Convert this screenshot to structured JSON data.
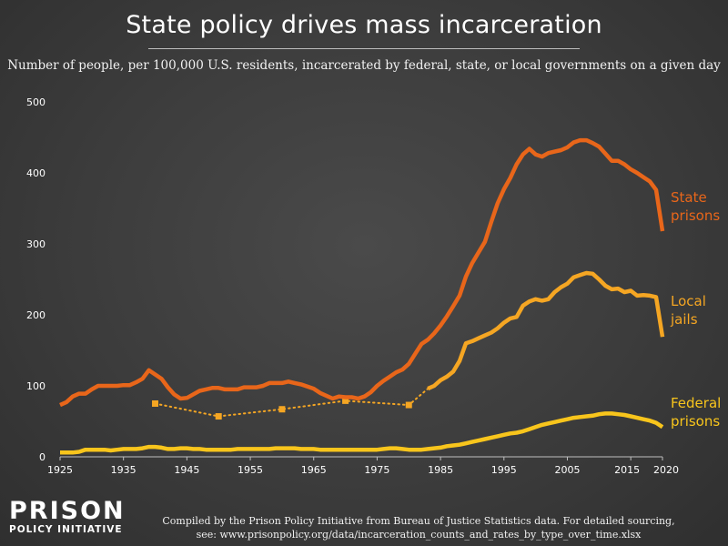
{
  "header": {
    "title": "State policy drives mass incarceration",
    "subtitle": "Number of people, per 100,000 U.S. residents, incarcerated by federal, state, or local governments on a given day"
  },
  "footer": {
    "line1": "Compiled by the Prison Policy Initiative from Bureau of Justice Statistics data. For detailed sourcing,",
    "line2": "see: www.prisonpolicy.org/data/incarceration_counts_and_rates_by_type_over_time.xlsx"
  },
  "logo": {
    "line1": "PRISON",
    "line2": "POLICY INITIATIVE"
  },
  "colors": {
    "state": "#e8661a",
    "local": "#f5a623",
    "federal": "#f8c51c",
    "background": "#3e3e3e"
  },
  "chart_data": {
    "type": "line",
    "title": "State policy drives mass incarceration",
    "subtitle": "Number of people, per 100,000 U.S. residents, incarcerated by federal, state, or local governments on a given day",
    "xlim": [
      1925,
      2020
    ],
    "ylim": [
      0,
      500
    ],
    "x_ticks": [
      "1925",
      "1935",
      "1945",
      "1955",
      "1965",
      "1975",
      "1985",
      "1995",
      "2005",
      "2015",
      "2020"
    ],
    "y_ticks": [
      "0",
      "100",
      "200",
      "300",
      "400",
      "500"
    ],
    "grid": false,
    "legend": "inline labels at right",
    "series": [
      {
        "key": "state",
        "name": "State prisons",
        "label_lines": [
          "State",
          "prisons"
        ],
        "color": "#e8661a",
        "style": "solid",
        "x": [
          1925,
          1926,
          1927,
          1928,
          1929,
          1930,
          1931,
          1932,
          1933,
          1934,
          1935,
          1936,
          1937,
          1938,
          1939,
          1940,
          1941,
          1942,
          1943,
          1944,
          1945,
          1946,
          1947,
          1948,
          1949,
          1950,
          1951,
          1952,
          1953,
          1954,
          1955,
          1956,
          1957,
          1958,
          1959,
          1960,
          1961,
          1962,
          1963,
          1964,
          1965,
          1966,
          1967,
          1968,
          1969,
          1970,
          1971,
          1972,
          1973,
          1974,
          1975,
          1976,
          1977,
          1978,
          1979,
          1980,
          1981,
          1982,
          1983,
          1984,
          1985,
          1986,
          1987,
          1988,
          1989,
          1990,
          1991,
          1992,
          1993,
          1994,
          1995,
          1996,
          1997,
          1998,
          1999,
          2000,
          2001,
          2002,
          2003,
          2004,
          2005,
          2006,
          2007,
          2008,
          2009,
          2010,
          2011,
          2012,
          2013,
          2014,
          2015,
          2016,
          2017,
          2018,
          2019,
          2020
        ],
        "y": [
          73,
          77,
          85,
          89,
          89,
          95,
          100,
          100,
          100,
          100,
          101,
          101,
          105,
          110,
          122,
          116,
          110,
          98,
          88,
          82,
          83,
          88,
          93,
          95,
          97,
          97,
          95,
          95,
          95,
          98,
          98,
          98,
          100,
          104,
          104,
          104,
          106,
          104,
          102,
          99,
          96,
          90,
          86,
          82,
          85,
          84,
          84,
          82,
          85,
          91,
          100,
          107,
          113,
          119,
          123,
          131,
          145,
          159,
          165,
          174,
          185,
          198,
          212,
          227,
          254,
          273,
          288,
          303,
          331,
          357,
          377,
          393,
          412,
          426,
          434,
          426,
          423,
          428,
          430,
          432,
          436,
          443,
          446,
          446,
          442,
          437,
          427,
          417,
          417,
          412,
          405,
          400,
          394,
          388,
          376,
          318
        ]
      },
      {
        "key": "local",
        "name": "Local jails",
        "label_lines": [
          "Local",
          "jails"
        ],
        "color": "#f5a623",
        "style": "solid",
        "x": [
          1983,
          1984,
          1985,
          1986,
          1987,
          1988,
          1989,
          1990,
          1991,
          1992,
          1993,
          1994,
          1995,
          1996,
          1997,
          1998,
          1999,
          2000,
          2001,
          2002,
          2003,
          2004,
          2005,
          2006,
          2007,
          2008,
          2009,
          2010,
          2011,
          2012,
          2013,
          2014,
          2015,
          2016,
          2017,
          2018,
          2019,
          2020
        ],
        "y": [
          96,
          100,
          108,
          113,
          120,
          135,
          160,
          163,
          167,
          171,
          175,
          181,
          189,
          195,
          197,
          213,
          219,
          222,
          220,
          222,
          232,
          239,
          244,
          253,
          256,
          259,
          258,
          250,
          241,
          236,
          237,
          232,
          234,
          227,
          228,
          227,
          225,
          169
        ]
      },
      {
        "key": "local_sparse",
        "name": "Local jails",
        "color": "#f5a623",
        "style": "dotted",
        "x": [
          1940,
          1950,
          1960,
          1970,
          1980,
          1983
        ],
        "y": [
          75,
          57,
          67,
          79,
          73,
          96
        ]
      },
      {
        "key": "federal",
        "name": "Federal prisons",
        "label_lines": [
          "Federal",
          "prisons"
        ],
        "color": "#f8c51c",
        "style": "solid",
        "x": [
          1925,
          1926,
          1927,
          1928,
          1929,
          1930,
          1931,
          1932,
          1933,
          1934,
          1935,
          1936,
          1937,
          1938,
          1939,
          1940,
          1941,
          1942,
          1943,
          1944,
          1945,
          1946,
          1947,
          1948,
          1949,
          1950,
          1951,
          1952,
          1953,
          1954,
          1955,
          1956,
          1957,
          1958,
          1959,
          1960,
          1961,
          1962,
          1963,
          1964,
          1965,
          1966,
          1967,
          1968,
          1969,
          1970,
          1971,
          1972,
          1973,
          1974,
          1975,
          1976,
          1977,
          1978,
          1979,
          1980,
          1981,
          1982,
          1983,
          1984,
          1985,
          1986,
          1987,
          1988,
          1989,
          1990,
          1991,
          1992,
          1993,
          1994,
          1995,
          1996,
          1997,
          1998,
          1999,
          2000,
          2001,
          2002,
          2003,
          2004,
          2005,
          2006,
          2007,
          2008,
          2009,
          2010,
          2011,
          2012,
          2013,
          2014,
          2015,
          2016,
          2017,
          2018,
          2019,
          2020
        ],
        "y": [
          6,
          6,
          6,
          7,
          10,
          10,
          10,
          10,
          9,
          10,
          11,
          11,
          11,
          12,
          14,
          14,
          13,
          11,
          11,
          12,
          12,
          11,
          11,
          10,
          10,
          10,
          10,
          10,
          11,
          11,
          11,
          11,
          11,
          11,
          12,
          12,
          12,
          12,
          11,
          11,
          11,
          10,
          10,
          10,
          10,
          10,
          10,
          10,
          10,
          10,
          10,
          11,
          12,
          12,
          11,
          10,
          10,
          10,
          11,
          12,
          13,
          15,
          16,
          17,
          19,
          21,
          23,
          25,
          27,
          29,
          31,
          33,
          34,
          36,
          39,
          42,
          45,
          47,
          49,
          51,
          53,
          55,
          56,
          57,
          58,
          60,
          61,
          61,
          60,
          59,
          57,
          55,
          53,
          51,
          48,
          42
        ]
      }
    ]
  }
}
